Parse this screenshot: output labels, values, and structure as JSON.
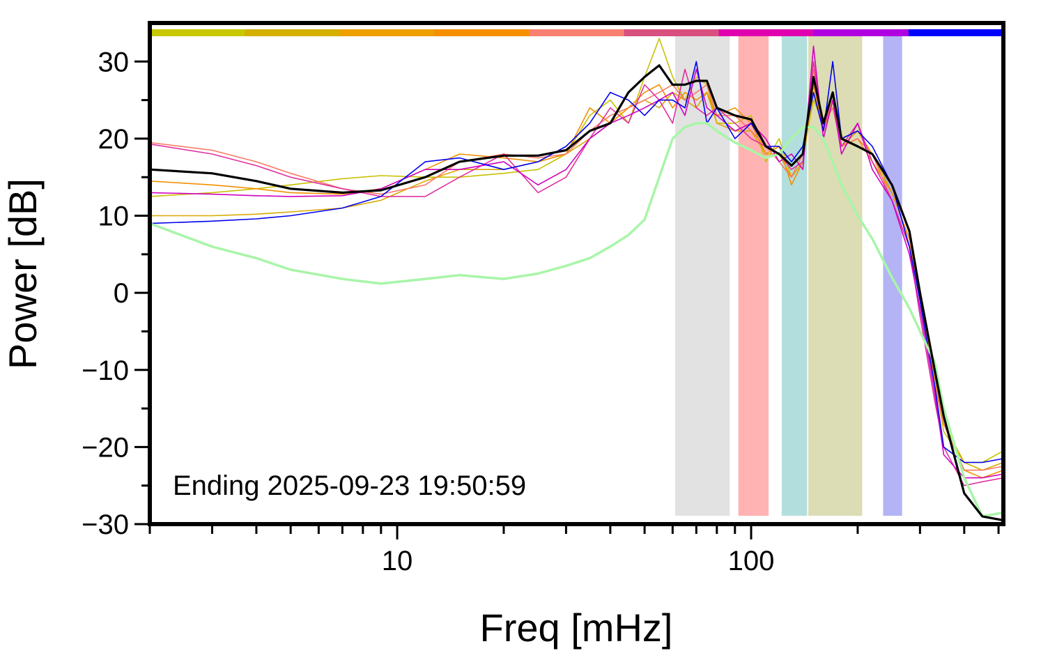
{
  "chart_data": {
    "type": "line",
    "xlabel": "Freq [mHz]",
    "ylabel": "Power [dB]",
    "annotation": "Ending 2025-09-23 19:50:59",
    "xscale": "log",
    "xlim": [
      2,
      516
    ],
    "ylim": [
      -30,
      35
    ],
    "xticks": [
      10,
      100
    ],
    "xminorticks": [
      2,
      3,
      4,
      5,
      6,
      7,
      8,
      9,
      20,
      30,
      40,
      50,
      60,
      70,
      80,
      90,
      200,
      300,
      400,
      500
    ],
    "yticks": [
      {
        "value": -30,
        "label": "−30"
      },
      {
        "value": -20,
        "label": "−20"
      },
      {
        "value": -10,
        "label": "−10"
      },
      0,
      10,
      20,
      30
    ],
    "yminorticks": [
      -25,
      -15,
      -5,
      5,
      15,
      25
    ],
    "color_bar": [
      "#c8c800",
      "#d4b000",
      "#eea000",
      "#f59000",
      "#f88070",
      "#d85080",
      "#e000b0",
      "#b000e0",
      "#0000ff"
    ],
    "bands": [
      {
        "x": [
          61,
          87
        ],
        "color": "#e2e2e2"
      },
      {
        "x": [
          92,
          112
        ],
        "color": "#ffb3b3"
      },
      {
        "x": [
          122,
          144
        ],
        "color": "#b3dede"
      },
      {
        "x": [
          145,
          206
        ],
        "color": "#dcdcb5"
      },
      {
        "x": [
          236,
          267
        ],
        "color": "#b3b3f5"
      }
    ],
    "x": [
      2,
      3,
      4,
      5,
      7,
      9,
      12,
      15,
      20,
      25,
      30,
      35,
      40,
      45,
      50,
      55,
      60,
      65,
      70,
      75,
      80,
      90,
      100,
      110,
      120,
      130,
      140,
      150,
      160,
      170,
      180,
      200,
      220,
      250,
      280,
      300,
      330,
      350,
      400,
      450,
      516
    ],
    "series": [
      {
        "color": "#c8c000",
        "width": 1.6,
        "values": [
          12.5,
          13,
          13.5,
          14,
          14.8,
          15.2,
          15,
          15,
          15.5,
          16,
          18,
          23,
          25,
          22,
          28,
          33,
          28,
          25,
          28,
          27,
          22,
          22,
          23,
          17,
          20,
          15,
          18,
          25,
          22,
          24,
          20,
          21,
          18,
          13,
          7,
          0,
          -11,
          -18,
          -22,
          -22,
          -20.5
        ]
      },
      {
        "color": "#d8a800",
        "width": 1.6,
        "values": [
          10,
          10,
          10.2,
          10.5,
          11,
          12,
          14.5,
          16,
          16,
          17,
          18,
          20,
          22,
          24,
          25,
          24,
          26,
          25,
          24,
          26,
          22,
          21,
          21,
          18,
          18,
          15,
          17,
          26,
          21,
          25,
          19,
          21,
          18,
          13,
          7,
          0,
          -11,
          -17,
          -22,
          -23,
          -22
        ]
      },
      {
        "color": "#f29000",
        "width": 1.6,
        "values": [
          14.5,
          14,
          13.5,
          13,
          12.8,
          13.5,
          16,
          18,
          17.5,
          17,
          18,
          24,
          22,
          24,
          26,
          27,
          24,
          26,
          25,
          26,
          23,
          24,
          22,
          18,
          19,
          14,
          17,
          27,
          21,
          25,
          19,
          20,
          17,
          13,
          7,
          -1,
          -11,
          -17,
          -23,
          -24,
          -23
        ]
      },
      {
        "color": "#f87a62",
        "width": 1.6,
        "values": [
          19.5,
          18.5,
          17,
          15.5,
          13.5,
          12.8,
          14,
          17,
          18,
          17.5,
          18,
          21,
          23,
          24,
          25,
          26,
          27,
          25,
          26,
          27,
          23,
          23,
          21,
          19,
          17,
          15,
          18,
          29,
          22,
          24,
          19,
          20,
          18,
          12,
          6,
          -1,
          -12,
          -17,
          -23,
          -23,
          -22.5
        ]
      },
      {
        "color": "#e030a0",
        "width": 1.6,
        "values": [
          19.3,
          18,
          16.5,
          15,
          13.5,
          12.5,
          12.5,
          15,
          18,
          13,
          15,
          20,
          24,
          22,
          27,
          25,
          22,
          29,
          24,
          23,
          24,
          22,
          20,
          19,
          18,
          16,
          17,
          30,
          21,
          26,
          19,
          22,
          17,
          12,
          6,
          -3,
          -14,
          -20,
          -25,
          -24.5,
          -24
        ]
      },
      {
        "color": "#d000c0",
        "width": 1.6,
        "values": [
          13,
          12.8,
          12.6,
          12.5,
          12.6,
          13.5,
          16,
          16,
          17,
          14,
          16,
          20,
          22,
          23,
          24,
          25,
          26,
          23,
          29,
          24,
          23,
          21,
          22,
          20,
          17,
          18,
          16,
          32,
          20,
          25,
          18,
          22,
          16,
          12,
          5,
          -2,
          -13,
          -21,
          -24,
          -24,
          -23.5
        ]
      },
      {
        "color": "#0000ee",
        "width": 1.6,
        "values": [
          9,
          9.3,
          9.6,
          10,
          11,
          12.5,
          17,
          17.5,
          16,
          17,
          19,
          22,
          26,
          25,
          23,
          25,
          25,
          24,
          30,
          22,
          24,
          20,
          22,
          19,
          19,
          17,
          19,
          26,
          21,
          30,
          20,
          21,
          19,
          14,
          6,
          -1,
          -12,
          -20,
          -22,
          -22,
          -21.5
        ]
      },
      {
        "color": "#a8f5a8",
        "width": 3.5,
        "values": [
          9,
          6,
          4.5,
          3,
          1.8,
          1.2,
          1.8,
          2.3,
          1.8,
          2.5,
          3.5,
          4.5,
          6,
          7.5,
          9.5,
          15,
          20,
          21.5,
          22,
          22,
          21,
          19.5,
          18.5,
          17.5,
          18,
          20,
          21.5,
          21.5,
          20,
          17,
          14,
          10,
          7,
          2,
          -2,
          -5,
          -9,
          -15,
          -24,
          -29,
          -28.5
        ]
      },
      {
        "color": "#000000",
        "width": 3.2,
        "values": [
          16,
          15.5,
          14.5,
          13.5,
          13,
          13.3,
          15,
          17,
          17.8,
          17.8,
          18.5,
          21,
          22,
          26,
          28,
          29.5,
          27,
          27,
          27.5,
          27.5,
          24,
          23,
          22.5,
          19,
          18,
          16.5,
          18,
          28,
          22,
          26,
          20,
          19,
          18,
          14,
          8,
          0,
          -10,
          -16,
          -26,
          -29,
          -29.5
        ]
      }
    ]
  }
}
